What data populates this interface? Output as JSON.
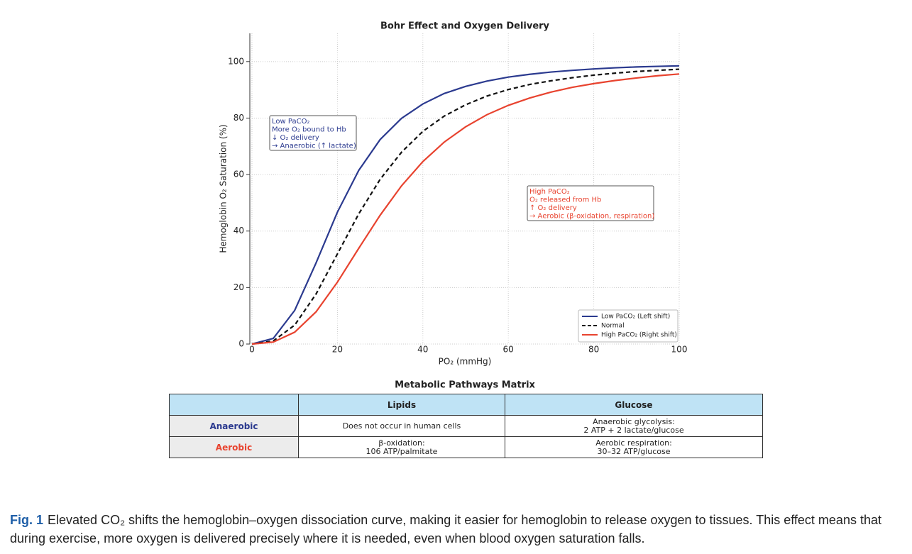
{
  "chart_data": {
    "type": "line",
    "title": "Bohr Effect and Oxygen Delivery",
    "x_label": "PO₂ (mmHg)",
    "y_label": "Hemoglobin O₂ Saturation (%)",
    "x": [
      0,
      5,
      10,
      15,
      20,
      25,
      30,
      35,
      40,
      45,
      50,
      55,
      60,
      65,
      70,
      75,
      80,
      85,
      90,
      95,
      100
    ],
    "series": [
      {
        "name": "Low PaCO₂ (Left shift)",
        "color": "#2b3a8f",
        "dash": false,
        "values": [
          0,
          2.0,
          11.9,
          28.7,
          46.7,
          61.5,
          72.4,
          79.9,
          85.0,
          88.7,
          91.2,
          93.1,
          94.5,
          95.5,
          96.3,
          96.9,
          97.4,
          97.8,
          98.1,
          98.3,
          98.5
        ]
      },
      {
        "name": "Normal",
        "color": "#111111",
        "dash": true,
        "values": [
          0,
          1.1,
          6.7,
          17.7,
          31.9,
          46.1,
          58.3,
          67.9,
          75.3,
          80.7,
          84.7,
          87.8,
          90.1,
          91.9,
          93.2,
          94.3,
          95.2,
          95.9,
          96.5,
          96.9,
          97.3
        ]
      },
      {
        "name": "High PaCO₂ (Right shift)",
        "color": "#e8432f",
        "dash": false,
        "values": [
          0,
          0.7,
          4.2,
          11.4,
          21.9,
          33.9,
          45.6,
          56.0,
          64.6,
          71.5,
          76.9,
          81.2,
          84.5,
          87.1,
          89.2,
          90.9,
          92.2,
          93.3,
          94.2,
          95.0,
          95.6
        ]
      }
    ],
    "xlim": [
      0,
      100
    ],
    "xticks": [
      0,
      20,
      40,
      60,
      80,
      100
    ],
    "ylim": [
      0,
      110
    ],
    "yticks": [
      0,
      20,
      40,
      60,
      80,
      100
    ],
    "grid": true,
    "legend": "lower right",
    "annotations": [
      {
        "color": "#2b3a8f",
        "lines": [
          "Low PaCO₂",
          "More O₂ bound to Hb",
          "↓ O₂ delivery",
          "→ Anaerobic (↑ lactate)"
        ]
      },
      {
        "color": "#e8432f",
        "lines": [
          "High PaCO₂",
          "O₂ released from Hb",
          "↑ O₂ delivery",
          "→ Aerobic (β-oxidation, respiration)"
        ]
      }
    ]
  },
  "table": {
    "title": "Metabolic Pathways Matrix",
    "columns": [
      "Lipids",
      "Glucose"
    ],
    "rows": [
      {
        "label": "Anaerobic",
        "cells": [
          [
            "Does not occur in human cells"
          ],
          [
            "Anaerobic glycolysis:",
            "2 ATP + 2 lactate/glucose"
          ]
        ]
      },
      {
        "label": "Aerobic",
        "cells": [
          [
            "β-oxidation:",
            "106 ATP/palmitate"
          ],
          [
            "Aerobic respiration:",
            "30–32 ATP/glucose"
          ]
        ]
      }
    ]
  },
  "caption": {
    "label": "Fig. 1",
    "text": "Elevated CO₂ shifts the hemoglobin–oxygen dissociation curve, making it easier for hemoglobin to release oxygen to tissues. This effect means that during exercise, more oxygen is delivered precisely where it is needed, even when blood oxygen saturation falls."
  }
}
